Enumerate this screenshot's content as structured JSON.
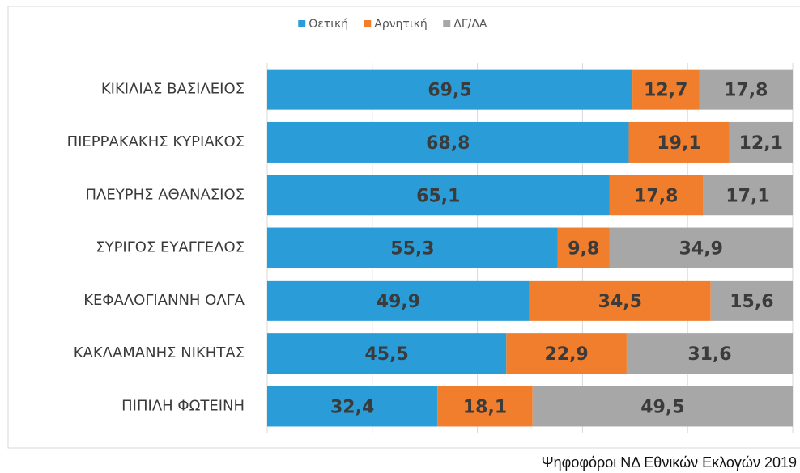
{
  "chart_data": {
    "type": "bar",
    "orientation": "horizontal",
    "stacked": true,
    "categories": [
      "ΚΙΚΙΛΙΑΣ ΒΑΣΙΛΕΙΟΣ",
      "ΠΙΕΡΡΑΚΑΚΗΣ ΚΥΡΙΑΚΟΣ",
      "ΠΛΕΥΡΗΣ ΑΘΑΝΑΣΙΟΣ",
      "ΣΥΡΙΓΟΣ ΕΥΑΓΓΕΛΟΣ",
      "ΚΕΦΑΛΟΓΙΑΝΝΗ ΟΛΓΑ",
      "ΚΑΚΛΑΜΑΝΗΣ ΝΙΚΗΤΑΣ",
      "ΠΙΠΙΛΗ ΦΩΤΕΙΝΗ"
    ],
    "series": [
      {
        "name": "Θετική",
        "color": "#2a9dd8",
        "values": [
          69.5,
          68.8,
          65.1,
          55.3,
          49.9,
          45.5,
          32.4
        ],
        "value_labels": [
          "69,5",
          "68,8",
          "65,1",
          "55,3",
          "49,9",
          "45,5",
          "32,4"
        ]
      },
      {
        "name": "Αρνητική",
        "color": "#f07e2c",
        "values": [
          12.7,
          19.1,
          17.8,
          9.8,
          34.5,
          22.9,
          18.1
        ],
        "value_labels": [
          "12,7",
          "19,1",
          "17,8",
          "9,8",
          "34,5",
          "22,9",
          "18,1"
        ]
      },
      {
        "name": "ΔΓ/ΔΑ",
        "color": "#a7a7a7",
        "values": [
          17.8,
          12.1,
          17.1,
          34.9,
          15.6,
          31.6,
          49.5
        ],
        "value_labels": [
          "17,8",
          "12,1",
          "17,1",
          "34,9",
          "15,6",
          "31,6",
          "49,5"
        ]
      }
    ],
    "xlim": [
      0,
      100
    ],
    "xticks": [
      0,
      20,
      40,
      60,
      80,
      100
    ],
    "grid": true,
    "legend": "top",
    "note": "Ψηφοφόροι ΝΔ Εθνικών Εκλογών 2019"
  }
}
